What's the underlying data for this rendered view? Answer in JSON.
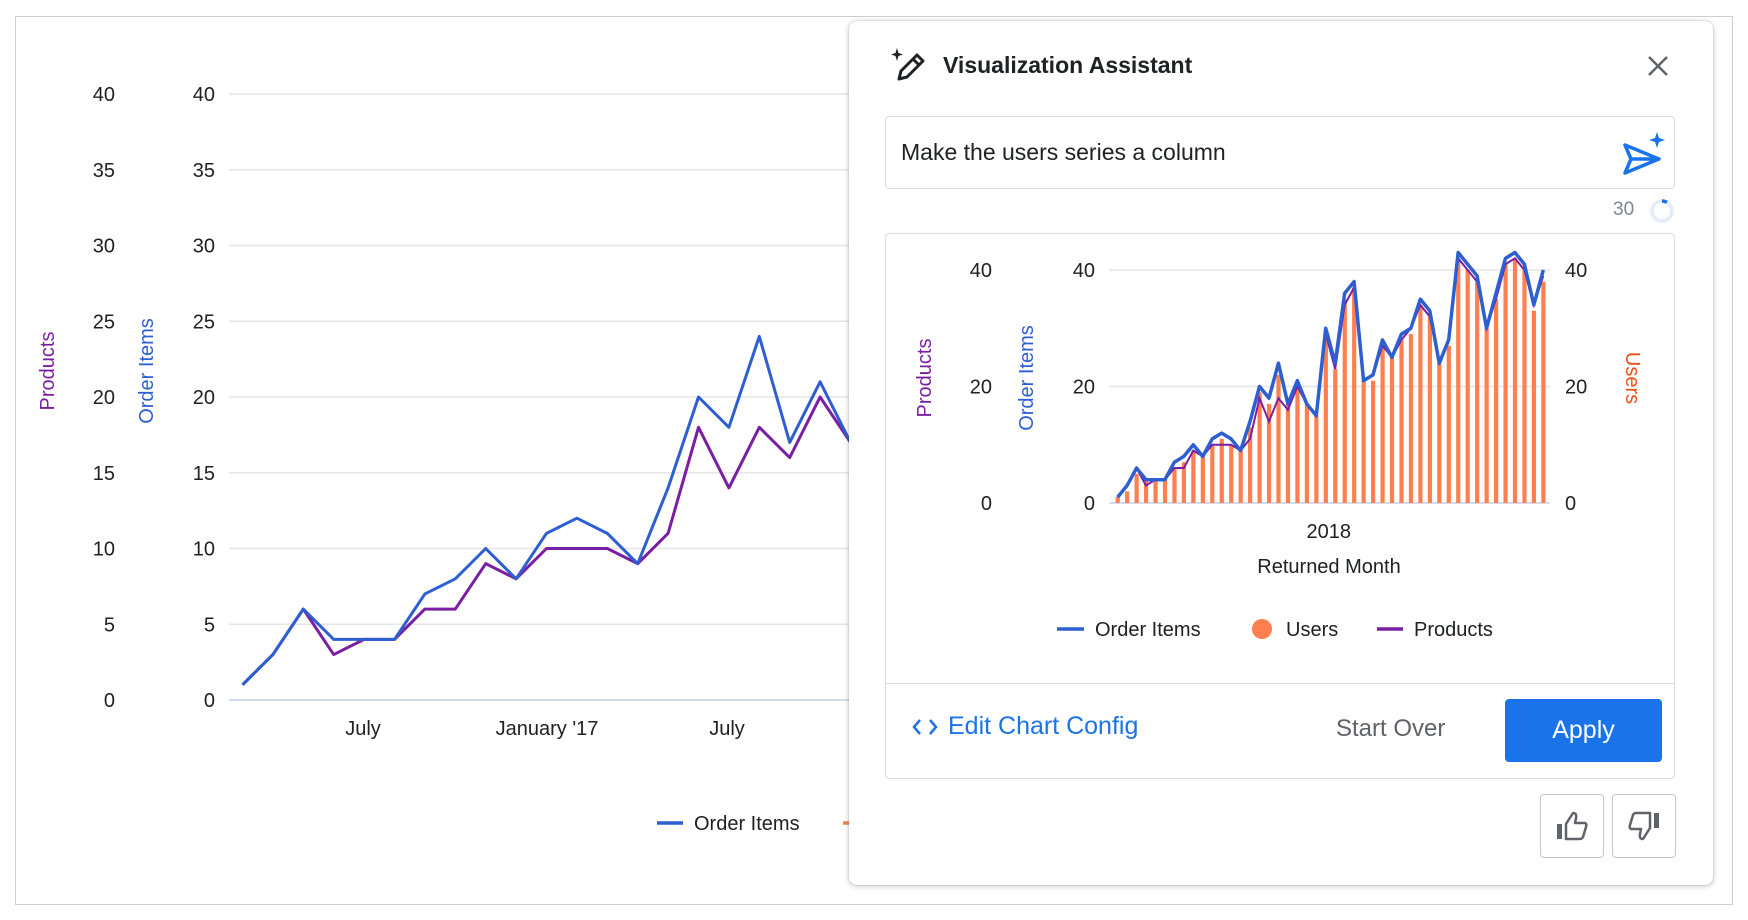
{
  "colors": {
    "order_items": "#2d5fd0",
    "products": "#7b1fa2",
    "users": "#ff7f50",
    "users_axis": "#e8501a",
    "accent": "#1a73e8"
  },
  "background_chart": {
    "legend": {
      "order_items": "Order Items"
    }
  },
  "panel": {
    "title": "Visualization Assistant",
    "icon": "magic-pen-icon",
    "prompt_value": "Make the users series a column",
    "remaining_count": "30",
    "edit_config_label": "Edit Chart Config",
    "start_over_label": "Start Over",
    "apply_label": "Apply"
  },
  "chart_data": [
    {
      "type": "line",
      "x_ticks": [
        "July",
        "January '17",
        "July"
      ],
      "y_axes": [
        {
          "label": "Products",
          "ticks": [
            "0",
            "5",
            "10",
            "15",
            "20",
            "25",
            "30",
            "35",
            "40"
          ],
          "ylim": [
            0,
            40
          ]
        },
        {
          "label": "Order Items",
          "ticks": [
            "0",
            "5",
            "10",
            "15",
            "20",
            "25",
            "30",
            "35",
            "40"
          ],
          "ylim": [
            0,
            40
          ]
        }
      ],
      "grid": true,
      "legend": "bottom",
      "series": [
        {
          "name": "Order Items",
          "values": [
            1,
            3,
            6,
            4,
            4,
            4,
            7,
            8,
            10,
            8,
            11,
            12,
            11,
            9,
            14,
            20,
            18,
            24,
            17,
            21,
            17
          ]
        },
        {
          "name": "Products",
          "values": [
            1,
            3,
            6,
            3,
            4,
            4,
            6,
            6,
            9,
            8,
            10,
            10,
            10,
            9,
            11,
            18,
            14,
            18,
            16,
            20,
            17
          ]
        }
      ]
    },
    {
      "type": "combo",
      "xlabel": "Returned Month",
      "x_ticks": [
        {
          "label": "2018",
          "index": 22
        }
      ],
      "y_axes": [
        {
          "label": "Products",
          "ticks": [
            "0",
            "20",
            "40"
          ],
          "ylim": [
            0,
            40
          ]
        },
        {
          "label": "Order Items",
          "ticks": [
            "0",
            "20",
            "40"
          ],
          "ylim": [
            0,
            40
          ]
        },
        {
          "label": "Users",
          "ticks": [
            "0",
            "20",
            "40"
          ],
          "ylim": [
            0,
            40
          ]
        }
      ],
      "grid": true,
      "legend": "bottom",
      "legend_items": [
        "Order Items",
        "Users",
        "Products"
      ],
      "series": [
        {
          "name": "Order Items",
          "kind": "line",
          "values": [
            1,
            3,
            6,
            4,
            4,
            4,
            7,
            8,
            10,
            8,
            11,
            12,
            11,
            9,
            14,
            20,
            18,
            24,
            17,
            21,
            17,
            15,
            30,
            24,
            36,
            38,
            21,
            22,
            28,
            25,
            29,
            30,
            35,
            33,
            24,
            28,
            43,
            41,
            39,
            30,
            36,
            42,
            43,
            41,
            34,
            40
          ]
        },
        {
          "name": "Users",
          "kind": "column",
          "values": [
            1,
            2,
            5,
            4,
            4,
            4,
            6,
            7,
            9,
            8,
            10,
            11,
            10,
            9,
            13,
            19,
            17,
            22,
            17,
            20,
            17,
            15,
            28,
            23,
            35,
            37,
            21,
            21,
            27,
            25,
            28,
            29,
            34,
            32,
            24,
            27,
            42,
            40,
            38,
            30,
            35,
            41,
            42,
            40,
            33,
            38
          ]
        },
        {
          "name": "Products",
          "kind": "line",
          "values": [
            1,
            3,
            6,
            3,
            4,
            4,
            6,
            6,
            9,
            8,
            10,
            10,
            10,
            9,
            11,
            18,
            14,
            18,
            16,
            20,
            17,
            15,
            29,
            23,
            34,
            37,
            21,
            22,
            27,
            25,
            28,
            30,
            34,
            32,
            24,
            28,
            42,
            40,
            38,
            30,
            35,
            41,
            42,
            40,
            34,
            39
          ]
        }
      ]
    }
  ]
}
